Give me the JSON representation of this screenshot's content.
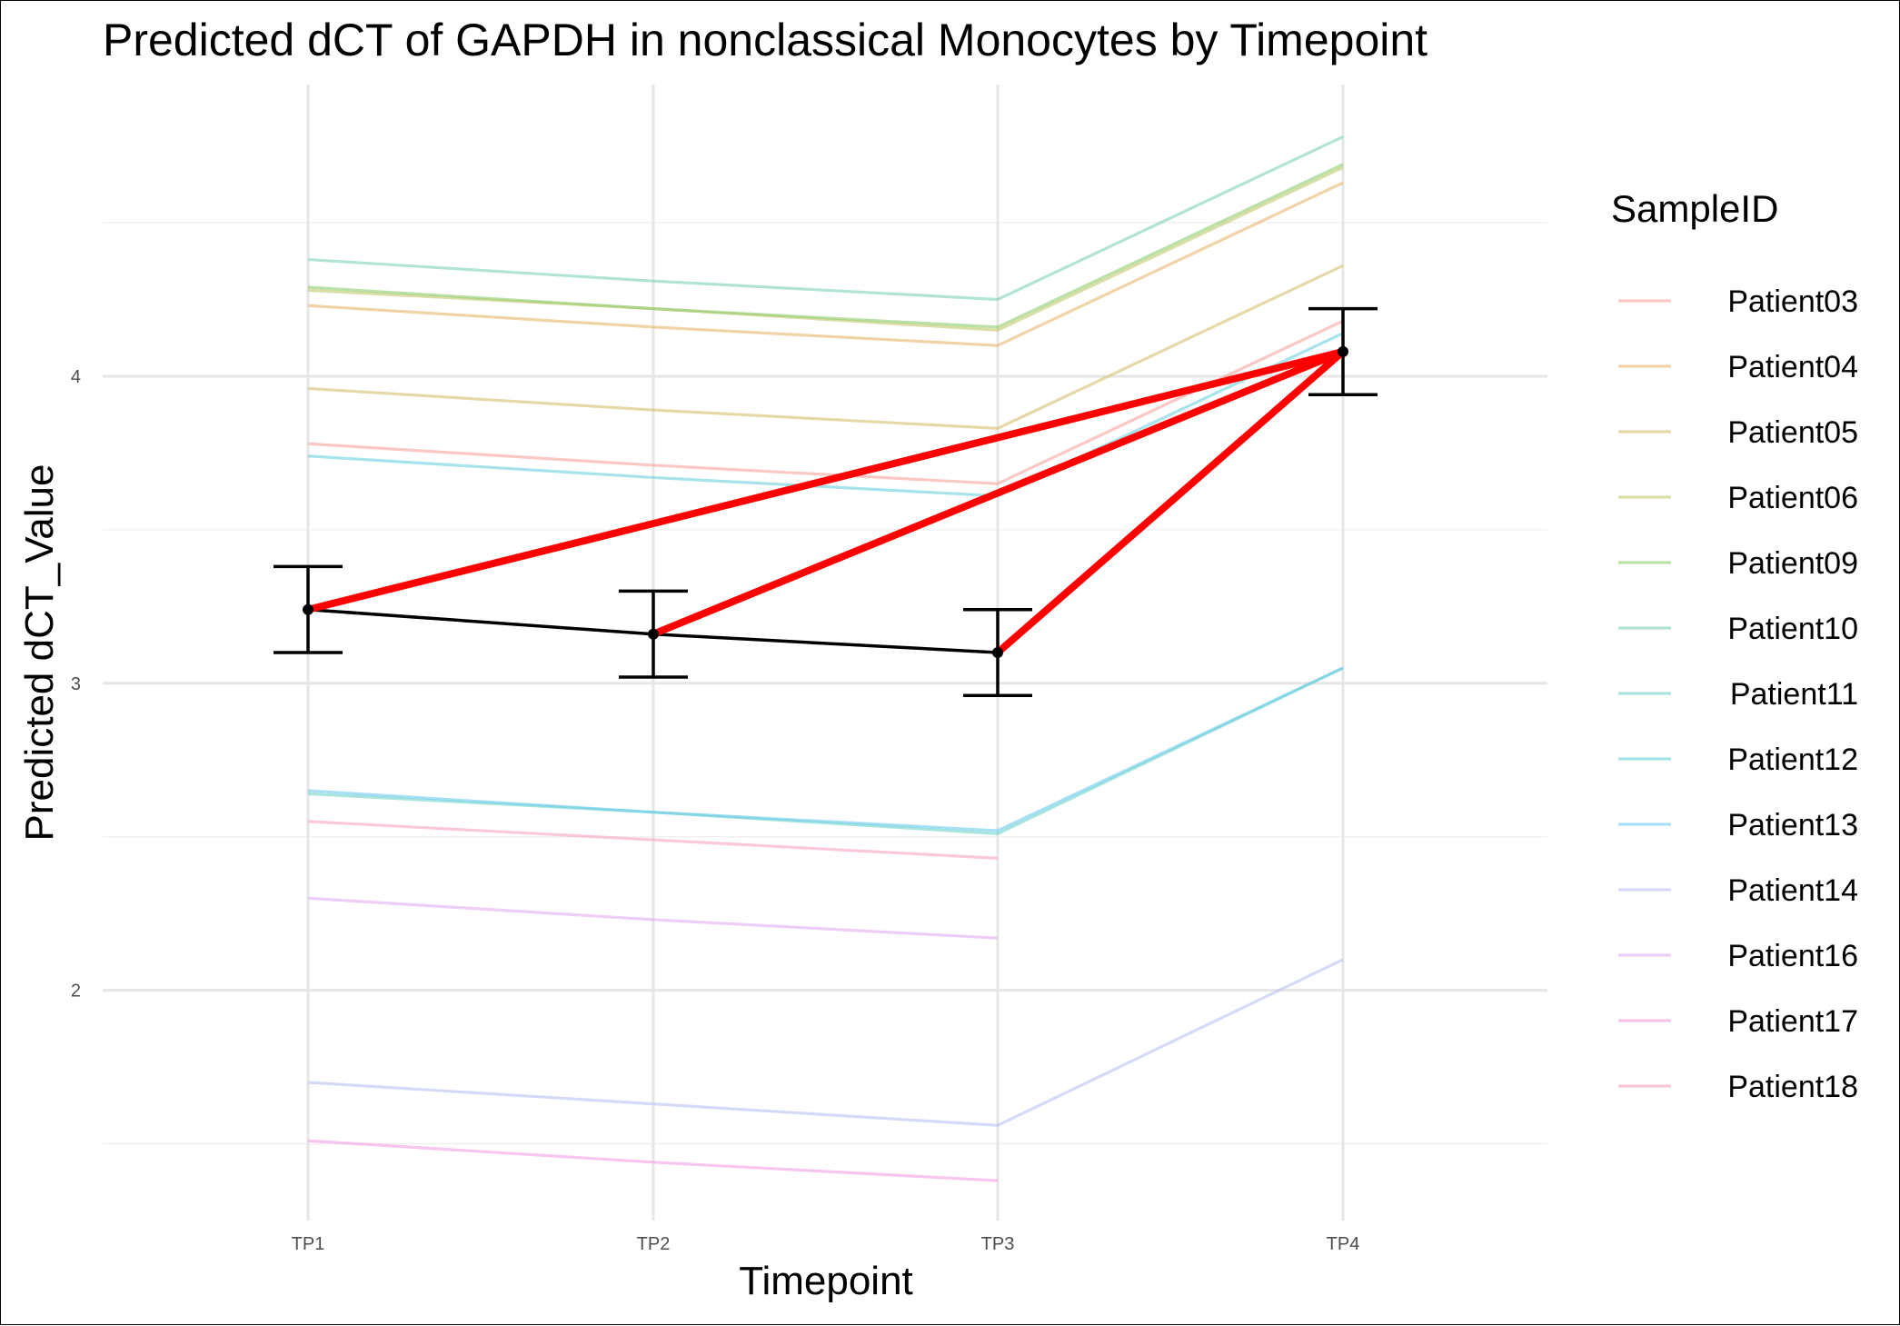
{
  "chart_data": {
    "type": "line",
    "title": "Predicted dCT of  GAPDH in  nonclassical  Monocytes by Timepoint",
    "xlabel": "Timepoint",
    "ylabel": "Predicted dCT_Value",
    "categories": [
      "TP1",
      "TP2",
      "TP3",
      "TP4"
    ],
    "ylim": [
      1.25,
      4.95
    ],
    "yticks": [
      2,
      3,
      4
    ],
    "grid": true,
    "legend": {
      "title": "SampleID",
      "position": "right"
    },
    "series": [
      {
        "name": "Patient03",
        "color": "#f8a4a0",
        "values": [
          3.78,
          3.71,
          3.65,
          4.18
        ]
      },
      {
        "name": "Patient04",
        "color": "#e8b56c",
        "values": [
          4.23,
          4.16,
          4.1,
          4.63
        ]
      },
      {
        "name": "Patient05",
        "color": "#d6bf6e",
        "values": [
          3.96,
          3.89,
          3.83,
          4.36
        ]
      },
      {
        "name": "Patient06",
        "color": "#c3c86b",
        "values": [
          4.28,
          4.22,
          4.15,
          4.68
        ]
      },
      {
        "name": "Patient09",
        "color": "#8ccd6e",
        "values": [
          4.29,
          4.22,
          4.16,
          4.69
        ]
      },
      {
        "name": "Patient10",
        "color": "#7ed3b2",
        "values": [
          4.38,
          4.31,
          4.25,
          4.78
        ]
      },
      {
        "name": "Patient11",
        "color": "#6fd4c8",
        "values": [
          2.64,
          2.58,
          2.51,
          3.05
        ]
      },
      {
        "name": "Patient12",
        "color": "#6dd0dd",
        "values": [
          3.74,
          3.67,
          3.61,
          4.14
        ]
      },
      {
        "name": "Patient13",
        "color": "#6ccbec",
        "values": [
          2.65,
          2.58,
          2.52,
          3.05
        ]
      },
      {
        "name": "Patient14",
        "color": "#b9c1f4",
        "values": [
          1.7,
          1.63,
          1.56,
          2.1
        ]
      },
      {
        "name": "Patient16",
        "color": "#e3acf2",
        "values": [
          2.3,
          2.23,
          2.17,
          null
        ]
      },
      {
        "name": "Patient17",
        "color": "#f19fe3",
        "values": [
          1.51,
          1.44,
          1.38,
          null
        ]
      },
      {
        "name": "Patient18",
        "color": "#f9a2c7",
        "values": [
          2.55,
          2.49,
          2.43,
          null
        ]
      }
    ],
    "mean": {
      "color": "#000000",
      "values": [
        3.24,
        3.16,
        3.1,
        4.08
      ],
      "error_low": [
        3.1,
        3.02,
        2.96,
        3.94
      ],
      "error_high": [
        3.38,
        3.3,
        3.24,
        4.22
      ]
    },
    "highlight": {
      "color": "#ff0000",
      "segments": [
        {
          "from": "TP1",
          "to": "TP4"
        },
        {
          "from": "TP2",
          "to": "TP4"
        },
        {
          "from": "TP3",
          "to": "TP4"
        }
      ]
    }
  }
}
